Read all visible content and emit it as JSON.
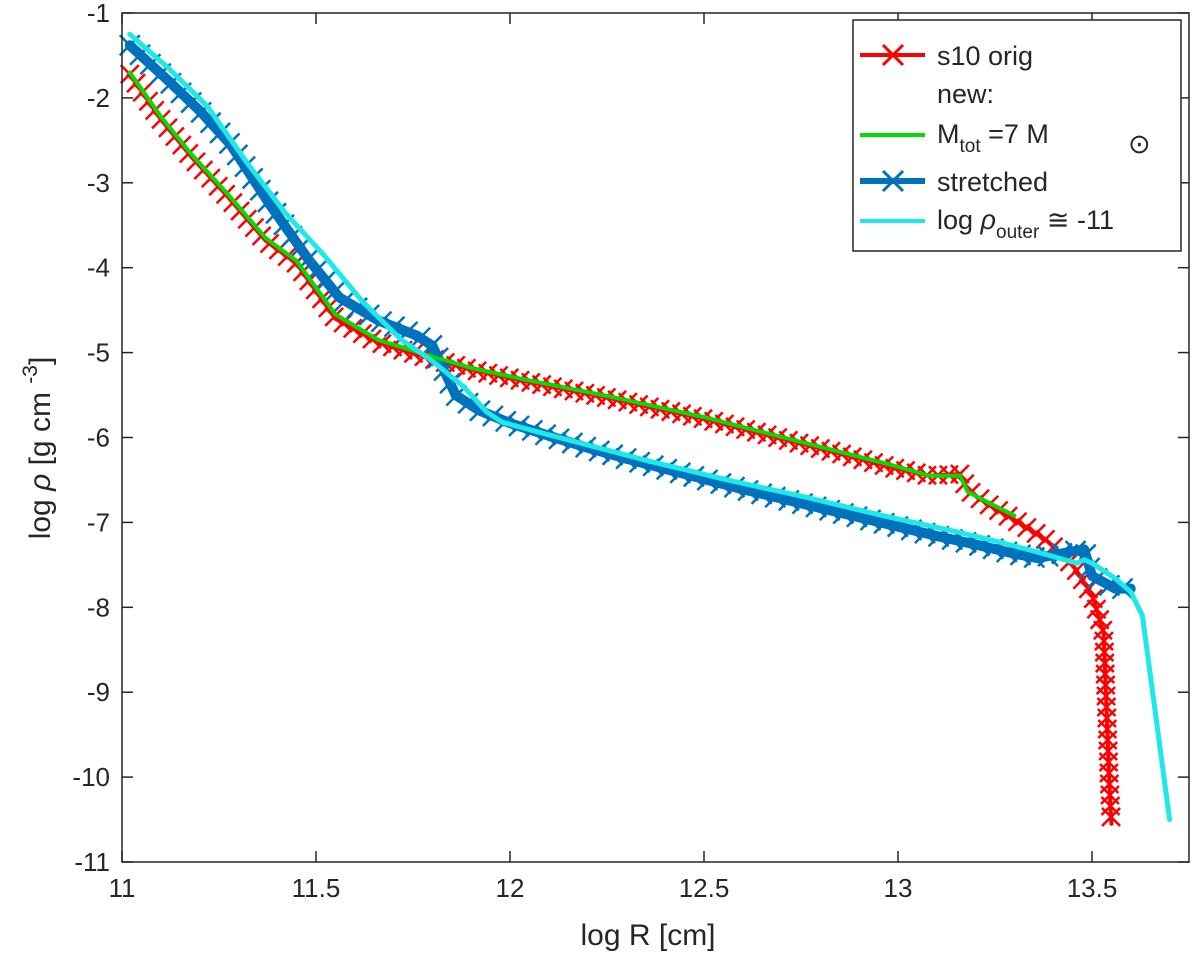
{
  "chart_data": {
    "type": "line",
    "xlabel": "log R [cm]",
    "ylabel_parts": {
      "pre": "log ",
      "rho": "ρ",
      "mid": " [g cm ",
      "sup": "-3",
      "post": "]"
    },
    "xlim": [
      11,
      13.75
    ],
    "ylim": [
      -11,
      -1
    ],
    "xticks": [
      11,
      11.5,
      12,
      12.5,
      13,
      13.5
    ],
    "xtick_labels": [
      "11",
      "11.5",
      "12",
      "12.5",
      "13",
      "13.5"
    ],
    "yticks": [
      -1,
      -2,
      -3,
      -4,
      -5,
      -6,
      -7,
      -8,
      -9,
      -10,
      -11
    ],
    "ytick_labels": [
      "-1",
      "-2",
      "-3",
      "-4",
      "-5",
      "-6",
      "-7",
      "-8",
      "-9",
      "-10",
      "-11"
    ],
    "grid": false,
    "legend_position": "top-right",
    "legend": {
      "s10": "s10 orig",
      "new_header": "new:",
      "mtot": {
        "main": "M",
        "sub": "tot",
        "rest": " =7 M",
        "sun": "⊙"
      },
      "stretched": "stretched",
      "outer": {
        "pre": "log ",
        "rho": "ρ",
        "sub": "outer",
        "rest": " ≅ -11"
      }
    },
    "series": [
      {
        "key": "s10",
        "color": "#ff0000",
        "marker": "x",
        "x": [
          11.02,
          11.1,
          11.18,
          11.27,
          11.37,
          11.45,
          11.55,
          11.66,
          11.78,
          11.9,
          12.02,
          12.14,
          12.26,
          12.38,
          12.5,
          12.62,
          12.74,
          12.86,
          12.98,
          13.08,
          13.16,
          13.18,
          13.23,
          13.3,
          13.38,
          13.45,
          13.5,
          13.53,
          13.535,
          13.54,
          13.545,
          13.55
        ],
        "y": [
          -1.72,
          -2.25,
          -2.7,
          -3.15,
          -3.68,
          -3.95,
          -4.6,
          -4.88,
          -5.05,
          -5.2,
          -5.32,
          -5.43,
          -5.54,
          -5.66,
          -5.78,
          -5.92,
          -6.06,
          -6.2,
          -6.35,
          -6.45,
          -6.43,
          -6.62,
          -6.78,
          -6.97,
          -7.2,
          -7.5,
          -7.85,
          -8.3,
          -8.9,
          -9.5,
          -10.1,
          -10.55
        ]
      },
      {
        "key": "mtot",
        "color": "#00dd00",
        "marker": "none",
        "x": [
          11.02,
          11.1,
          11.18,
          11.27,
          11.37,
          11.45,
          11.55,
          11.66,
          11.78,
          11.9,
          12.02,
          12.14,
          12.26,
          12.38,
          12.5,
          12.62,
          12.74,
          12.86,
          12.98,
          13.08,
          13.16,
          13.18,
          13.23,
          13.3
        ],
        "y": [
          -1.7,
          -2.22,
          -2.67,
          -3.12,
          -3.65,
          -3.92,
          -4.55,
          -4.85,
          -5.02,
          -5.18,
          -5.3,
          -5.41,
          -5.52,
          -5.64,
          -5.76,
          -5.9,
          -6.04,
          -6.18,
          -6.32,
          -6.45,
          -6.45,
          -6.64,
          -6.76,
          -6.92
        ]
      },
      {
        "key": "stretched",
        "color": "#0072bd",
        "marker": "x",
        "x": [
          11.02,
          11.12,
          11.2,
          11.28,
          11.38,
          11.48,
          11.56,
          11.66,
          11.76,
          11.8,
          11.86,
          11.92,
          12.0,
          12.1,
          12.2,
          12.3,
          12.4,
          12.5,
          12.6,
          12.7,
          12.8,
          12.9,
          13.0,
          13.1,
          13.2,
          13.3,
          13.36,
          13.44,
          13.48,
          13.5,
          13.56,
          13.6
        ],
        "y": [
          -1.38,
          -1.8,
          -2.15,
          -2.55,
          -3.25,
          -3.9,
          -4.35,
          -4.62,
          -4.8,
          -4.92,
          -5.5,
          -5.68,
          -5.83,
          -5.98,
          -6.12,
          -6.25,
          -6.37,
          -6.49,
          -6.61,
          -6.72,
          -6.83,
          -6.94,
          -7.05,
          -7.16,
          -7.26,
          -7.37,
          -7.42,
          -7.35,
          -7.32,
          -7.63,
          -7.78,
          -7.78
        ]
      },
      {
        "key": "outer",
        "color": "#1fe8e8",
        "marker": "none",
        "x": [
          11.02,
          11.12,
          11.22,
          11.32,
          11.42,
          11.52,
          11.62,
          11.72,
          11.8,
          11.88,
          11.94,
          11.98,
          12.06,
          12.16,
          12.26,
          12.36,
          12.46,
          12.56,
          12.66,
          12.76,
          12.86,
          12.96,
          13.06,
          13.16,
          13.26,
          13.36,
          13.46,
          13.48,
          13.5,
          13.56,
          13.6,
          13.63,
          13.7
        ],
        "y": [
          -1.25,
          -1.65,
          -2.1,
          -2.75,
          -3.35,
          -3.85,
          -4.4,
          -4.85,
          -5.1,
          -5.4,
          -5.7,
          -5.82,
          -5.92,
          -6.04,
          -6.16,
          -6.28,
          -6.39,
          -6.5,
          -6.6,
          -6.7,
          -6.81,
          -6.92,
          -7.02,
          -7.12,
          -7.23,
          -7.35,
          -7.48,
          -7.44,
          -7.48,
          -7.66,
          -7.82,
          -8.1,
          -10.5
        ]
      }
    ]
  }
}
